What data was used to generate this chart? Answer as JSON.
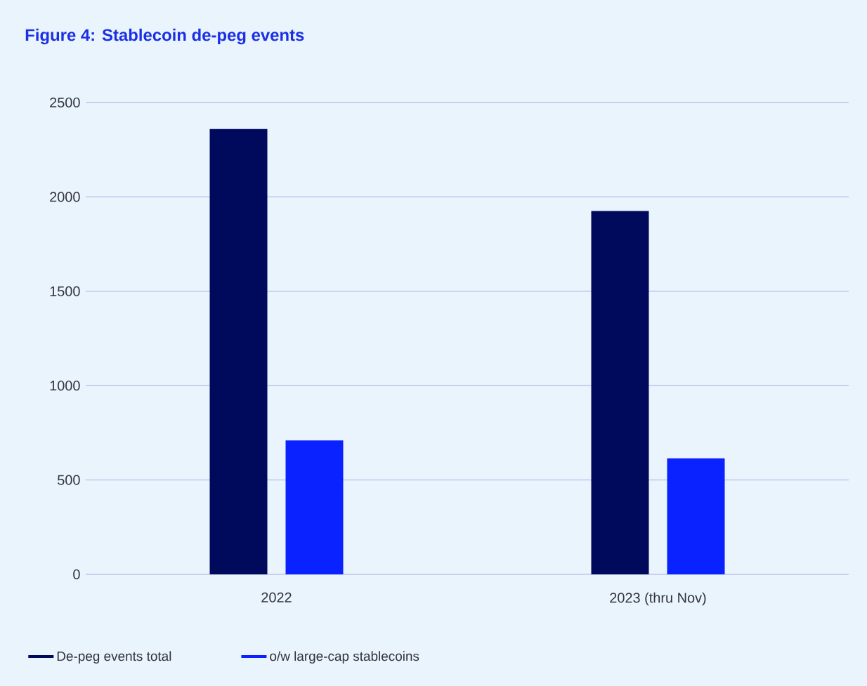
{
  "chart_data": {
    "type": "bar",
    "title": "Figure 4: Stablecoin de-peg events",
    "categories": [
      "2022",
      "2023 (thru Nov)"
    ],
    "series": [
      {
        "name": "De-peg events total",
        "color": "#000a5c",
        "values": [
          2360,
          1925
        ]
      },
      {
        "name": "o/w large-cap stablecoins",
        "color": "#0a22ff",
        "values": [
          710,
          615
        ]
      }
    ],
    "ylim": [
      0,
      2500
    ],
    "yticks": [
      0,
      500,
      1000,
      1500,
      2000,
      2500
    ],
    "grid": "y",
    "legend": "bottom left"
  }
}
